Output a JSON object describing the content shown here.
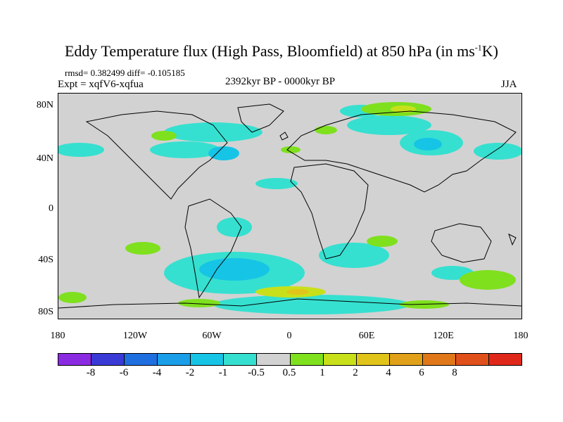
{
  "title": {
    "main": "Eddy Temperature flux (High Pass, Bloomfield) at 850 hPa (in ms",
    "sup": "-1",
    "end": "K)"
  },
  "stats": "rmsd= 0.382499 diff= -0.105185",
  "expt": "Expt = xqfV6-xqfua",
  "period": "2392kyr BP - 0000kyr BP",
  "season": "JJA",
  "y_ticks": [
    "80N",
    "40N",
    "0",
    "40S",
    "80S"
  ],
  "x_ticks": [
    "180",
    "120W",
    "60W",
    "0",
    "60E",
    "120E",
    "180"
  ],
  "colorbar": {
    "colors": [
      "#8a2be2",
      "#3a3ad6",
      "#1f6fe0",
      "#1a9ee8",
      "#16c4e6",
      "#36e0d0",
      "#d2d2d2",
      "#7fe01e",
      "#c8e01a",
      "#e0c41a",
      "#e0a01a",
      "#e0781a",
      "#e0501a",
      "#e0281a"
    ],
    "labels": [
      "-8",
      "-6",
      "-4",
      "-2",
      "-1",
      "-0.5",
      "0.5",
      "1",
      "2",
      "4",
      "6",
      "8"
    ]
  }
}
